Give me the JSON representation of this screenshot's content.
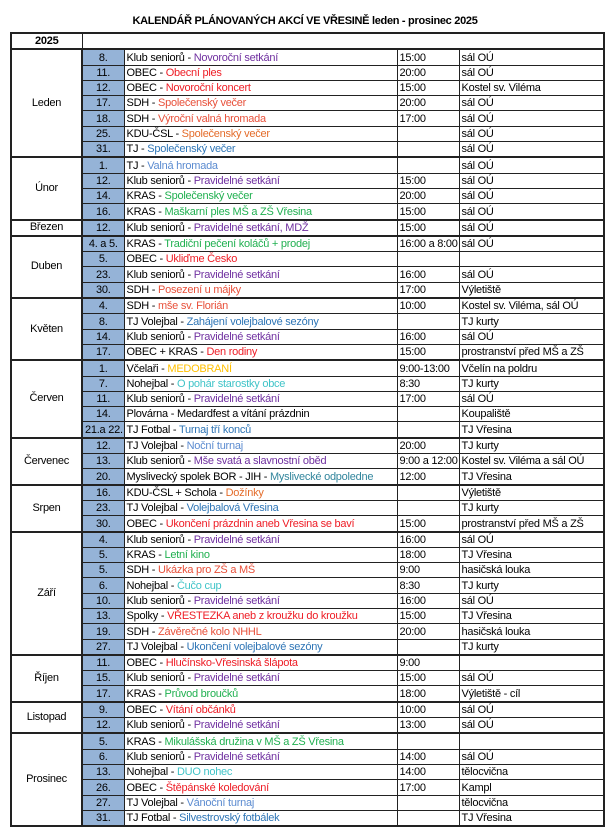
{
  "title": "KALENDÁŘ PLÁNOVANÝCH AKCÍ VE VŘESINĚ leden - prosinec 2025",
  "year": "2025",
  "colors": {
    "purple": "#7030a0",
    "red": "#ee1c25",
    "sdh": "#e8503a",
    "orange": "#e46c2a",
    "blue": "#2e75b6",
    "lightblue": "#5b8bd0",
    "green": "#20b050",
    "teal": "#40c4c8",
    "yellow": "#ffc000",
    "darkteal": "#31859c",
    "black": "#000000",
    "day_cell_bg": "#95b3d7"
  },
  "months": [
    {
      "name": "Leden",
      "events": [
        {
          "day": "8.",
          "org": "Klub seniorů",
          "title": "Novoroční setkání",
          "color": "purple",
          "time": "15:00",
          "place": "sál OÚ"
        },
        {
          "day": "11.",
          "org": "OBEC",
          "title": "Obecní ples",
          "color": "red",
          "time": "20:00",
          "place": "sál OÚ"
        },
        {
          "day": "12.",
          "org": "OBEC",
          "title": "Novoroční koncert",
          "color": "red",
          "time": "15:00",
          "place": "Kostel sv. Viléma"
        },
        {
          "day": "17.",
          "org": "SDH",
          "title": "Společenský večer",
          "color": "sdh",
          "time": "20:00",
          "place": "sál OÚ"
        },
        {
          "day": "18.",
          "org": "SDH",
          "title": "Výroční valná hromada",
          "color": "sdh",
          "time": "17:00",
          "place": "sál OÚ"
        },
        {
          "day": "25.",
          "org": "KDU-ČSL",
          "title": "Společenský večer",
          "color": "orange",
          "time": "",
          "place": "sál OÚ"
        },
        {
          "day": "31.",
          "org": "TJ ",
          "title": "Společenský večer",
          "color": "blue",
          "time": "",
          "place": "sál OÚ"
        }
      ]
    },
    {
      "name": "Únor",
      "events": [
        {
          "day": "1.",
          "org": "TJ ",
          "title": "Valná hromada",
          "color": "lightblue",
          "time": "",
          "place": "sál OÚ"
        },
        {
          "day": "12.",
          "org": "Klub seniorů",
          "title": "Pravidelné setkání",
          "color": "purple",
          "time": "15:00",
          "place": "sál OÚ"
        },
        {
          "day": "14.",
          "org": "KRAS",
          "title": "Společenský večer",
          "color": "green",
          "time": "20:00",
          "place": "sál OÚ"
        },
        {
          "day": "16.",
          "org": "KRAS",
          "title": "Maškarní ples MŠ a ZŠ Vřesina",
          "color": "green",
          "time": "15:00",
          "place": "sál OÚ"
        }
      ]
    },
    {
      "name": "Březen",
      "events": [
        {
          "day": "12.",
          "org": "Klub seniorů",
          "title": "Pravidelné setkání, MDŽ",
          "color": "purple",
          "time": "15:00",
          "place": "sál OÚ"
        }
      ]
    },
    {
      "name": "Duben",
      "events": [
        {
          "day": "4. a 5.",
          "org": "KRAS",
          "title": "Tradiční pečení koláčů + prodej",
          "color": "green",
          "time": "16:00 a 8:00",
          "place": "sál OÚ"
        },
        {
          "day": "5.",
          "org": "OBEC",
          "title": "Ukliďme Česko",
          "color": "red",
          "time": "",
          "place": ""
        },
        {
          "day": "23.",
          "org": "Klub seniorů",
          "title": "Pravidelné setkání",
          "color": "purple",
          "time": "16:00",
          "place": "sál OÚ"
        },
        {
          "day": "30.",
          "org": "SDH",
          "title": "Posezení u májky",
          "color": "sdh",
          "time": "17:00",
          "place": "Výletiště"
        }
      ]
    },
    {
      "name": "Květen",
      "events": [
        {
          "day": "4.",
          "org": "SDH",
          "title": "mše sv. Florián",
          "color": "sdh",
          "time": "10:00",
          "place": "Kostel sv. Viléma, sál OÚ"
        },
        {
          "day": "8.",
          "org": "TJ Volejbal",
          "title": "Zahájení volejbalové sezóny",
          "color": "blue",
          "time": "",
          "place": "TJ kurty"
        },
        {
          "day": "14.",
          "org": "Klub seniorů",
          "title": "Pravidelné setkání",
          "color": "purple",
          "time": "16:00",
          "place": "sál OÚ"
        },
        {
          "day": "17.",
          "org": "OBEC + KRAS",
          "title": "Den rodiny",
          "color": "red",
          "time": "15:00",
          "place": "prostranství před MŠ a ZŠ"
        }
      ]
    },
    {
      "name": "Červen",
      "events": [
        {
          "day": "1.",
          "org": "Včelaři",
          "title": "MEDOBRANÍ",
          "color": "yellow",
          "time": "9:00-13:00",
          "place": "Včelín na poldru"
        },
        {
          "day": "7.",
          "org": "Nohejbal",
          "title": "O pohár starostky obce",
          "color": "teal",
          "time": "8:30",
          "place": "TJ kurty"
        },
        {
          "day": "11.",
          "org": "Klub seniorů",
          "title": "Pravidelné setkání",
          "color": "purple",
          "time": "17:00",
          "place": "sál OÚ"
        },
        {
          "day": "14.",
          "org": "Plovárna",
          "title": "Medardfest a vítání prázdnin",
          "color": "black",
          "time": "",
          "place": "Koupaliště"
        },
        {
          "day": "21.a 22.",
          "org": "TJ Fotbal",
          "title": "Turnaj tří konců",
          "color": "blue",
          "time": "",
          "place": "TJ Vřesina"
        }
      ]
    },
    {
      "name": "Červenec",
      "events": [
        {
          "day": "12.",
          "org": "TJ Volejbal",
          "title": "Noční turnaj",
          "color": "lightblue",
          "time": "20:00",
          "place": "TJ kurty"
        },
        {
          "day": "13.",
          "org": "Klub seniorů",
          "title": "Mše svatá a slavnostní oběd",
          "color": "purple",
          "time": "9:00 a 12:00",
          "place": "Kostel sv. Viléma a sál OÚ"
        },
        {
          "day": "20.",
          "org": "Myslivecký spolek BOR - JIH",
          "title": "Myslivecké odpoledne",
          "color": "darkteal",
          "time": "12:00",
          "place": "TJ Vřesina"
        }
      ]
    },
    {
      "name": "Srpen",
      "events": [
        {
          "day": "16.",
          "org": "KDU-ČSL + Schola",
          "title": "Dožínky",
          "color": "orange",
          "time": "",
          "place": "Výletiště"
        },
        {
          "day": "23.",
          "org": "TJ Volejbal",
          "title": "Volejbalová Vřesina",
          "color": "blue",
          "time": "",
          "place": "TJ kurty"
        },
        {
          "day": "30.",
          "org": "OBEC",
          "title": "Ukončení prázdnin aneb Vřesina se baví",
          "color": "red",
          "time": "15:00",
          "place": "prostranství před MŠ a ZŠ"
        }
      ]
    },
    {
      "name": "Září",
      "events": [
        {
          "day": "4.",
          "org": "Klub seniorů",
          "title": "Pravidelné setkání",
          "color": "purple",
          "time": "16:00",
          "place": "sál OÚ"
        },
        {
          "day": "5.",
          "org": "KRAS",
          "title": "Letní kino",
          "color": "green",
          "time": "18:00",
          "place": "TJ Vřesina"
        },
        {
          "day": "5.",
          "org": "SDH",
          "title": "Ukázka pro ZŠ a MŠ",
          "color": "sdh",
          "time": "9:00",
          "place": "hasičská louka"
        },
        {
          "day": "6.",
          "org": "Nohejbal",
          "title": "Čučo cup",
          "color": "teal",
          "time": "8:30",
          "place": "TJ kurty"
        },
        {
          "day": "10.",
          "org": "Klub seniorů",
          "title": "Pravidelné setkání",
          "color": "purple",
          "time": "16:00",
          "place": "sál OÚ"
        },
        {
          "day": "13.",
          "org": "Spolky",
          "title": "VŘESTEZKA aneb z kroužku do kroužku",
          "color": "red",
          "time": "15:00",
          "place": "TJ Vřesina"
        },
        {
          "day": "19.",
          "org": "SDH",
          "title": "Závěrečné kolo NHHL",
          "color": "sdh",
          "time": "20:00",
          "place": "hasičská louka"
        },
        {
          "day": "27.",
          "org": "TJ Volejbal",
          "title": "Ukončení volejbalové sezóny",
          "color": "blue",
          "time": "",
          "place": "TJ kurty"
        }
      ]
    },
    {
      "name": "Říjen",
      "events": [
        {
          "day": "11.",
          "org": "OBEC",
          "title": "Hlučínsko-Vřesinská šlápota",
          "color": "red",
          "time": "9:00",
          "place": ""
        },
        {
          "day": "15.",
          "org": "Klub seniorů",
          "title": "Pravidelné setkání",
          "color": "purple",
          "time": "15:00",
          "place": "sál OÚ"
        },
        {
          "day": "17.",
          "org": "KRAS",
          "title": "Průvod broučků",
          "color": "green",
          "time": "18:00",
          "place": "Výletiště - cíl"
        }
      ]
    },
    {
      "name": "Listopad",
      "events": [
        {
          "day": "9.",
          "org": "OBEC",
          "title": "Vítání občánků",
          "color": "red",
          "time": "10:00",
          "place": "sál OÚ"
        },
        {
          "day": "12.",
          "org": "Klub seniorů",
          "title": "Pravidelné setkání",
          "color": "purple",
          "time": "13:00",
          "place": "sál OÚ"
        }
      ]
    },
    {
      "name": "Prosinec",
      "events": [
        {
          "day": "5.",
          "org": "KRAS",
          "title": "Mikulášská družina v MŠ a ZŠ Vřesina",
          "color": "green",
          "time": "",
          "place": ""
        },
        {
          "day": "6.",
          "org": "Klub seniorů",
          "title": "Pravidelné setkání",
          "color": "purple",
          "time": "14:00",
          "place": "sál OÚ"
        },
        {
          "day": "13.",
          "org": "Nohejbal",
          "title": "DUO nohec",
          "color": "teal",
          "time": "14:00",
          "place": "tělocvična"
        },
        {
          "day": "26.",
          "org": "OBEC",
          "title": "Štěpánské koledování",
          "color": "red",
          "time": "17:00",
          "place": "Kampl"
        },
        {
          "day": "27.",
          "org": "TJ Volejbal",
          "title": "Vánoční turnaj",
          "color": "lightblue",
          "time": "",
          "place": "tělocvična"
        },
        {
          "day": "31.",
          "org": "TJ Fotbal",
          "title": "Silvestrovský fotbálek",
          "color": "blue",
          "time": "",
          "place": "TJ Vřesina"
        }
      ]
    }
  ]
}
